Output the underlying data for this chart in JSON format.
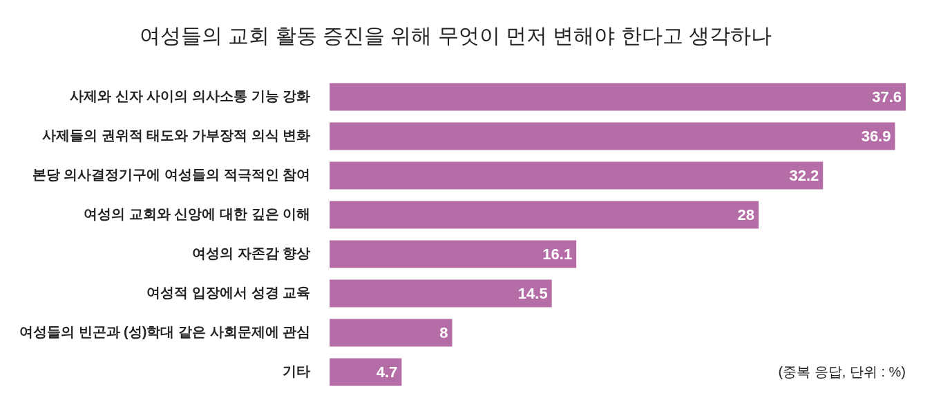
{
  "chart_data": {
    "type": "bar",
    "orientation": "horizontal",
    "title": "여성들의 교회 활동 증진을 위해 무엇이 먼저 변해야 한다고 생각하나",
    "categories": [
      "사제와 신자 사이의 의사소통 기능 강화",
      "사제들의 권위적 태도와 가부장적 의식 변화",
      "본당 의사결정기구에 여성들의 적극적인 참여",
      "여성의 교회와 신앙에 대한 깊은 이해",
      "여성의 자존감 향상",
      "여성적 입장에서 성경 교육",
      "여성들의 빈곤과 (성)학대 같은 사회문제에 관심",
      "기타"
    ],
    "values": [
      37.6,
      36.9,
      32.2,
      28,
      16.1,
      14.5,
      8,
      4.7
    ],
    "color": "#b56da7",
    "data_labels": true,
    "legend": false,
    "annotations": [
      "(중복 응답, 단위 : %)"
    ]
  }
}
